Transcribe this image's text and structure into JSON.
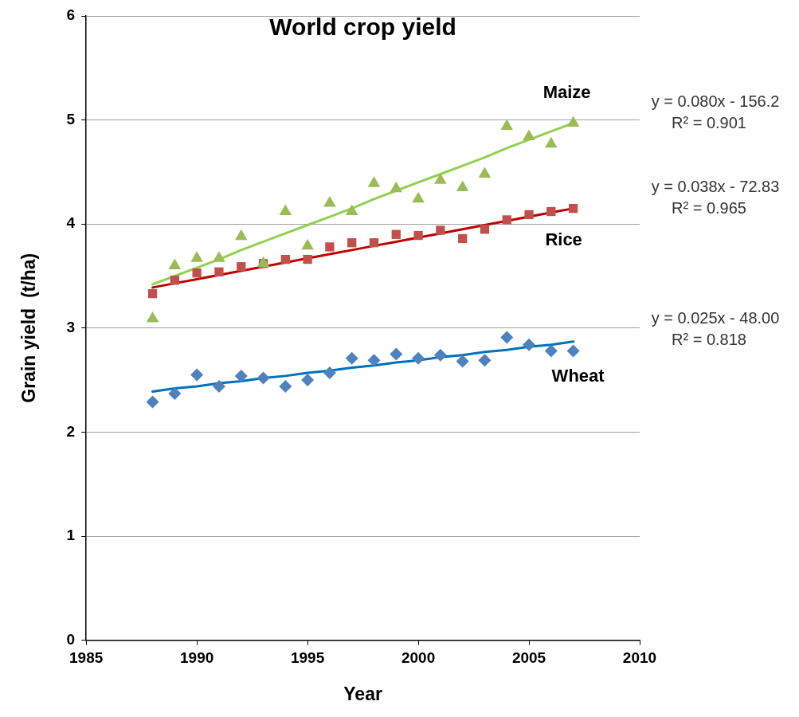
{
  "chart_data": {
    "type": "scatter",
    "title": "World crop yield",
    "xlabel": "Year",
    "ylabel": "Grain yield  (t/ha)",
    "x": [
      1988,
      1989,
      1990,
      1991,
      1992,
      1993,
      1994,
      1995,
      1996,
      1997,
      1998,
      1999,
      2000,
      2001,
      2002,
      2003,
      2004,
      2005,
      2006,
      2007
    ],
    "series": [
      {
        "name": "Maize",
        "color": "#9bbb59",
        "marker": "triangle",
        "values": [
          3.09,
          3.6,
          3.67,
          3.67,
          3.88,
          3.62,
          4.12,
          3.79,
          4.2,
          4.12,
          4.39,
          4.34,
          4.24,
          4.42,
          4.35,
          4.48,
          4.94,
          4.84,
          4.77,
          4.97
        ]
      },
      {
        "type": "line",
        "color": "#92d050",
        "marker": "none",
        "values": [
          3.42,
          3.5,
          3.58,
          3.66,
          3.75,
          3.83,
          3.91,
          3.99,
          4.07,
          4.15,
          4.24,
          4.32,
          4.4,
          4.48,
          4.56,
          4.64,
          4.73,
          4.81,
          4.89,
          4.97
        ]
      },
      {
        "name": "Rice",
        "color": "#c0504d",
        "marker": "square",
        "values": [
          3.33,
          3.46,
          3.53,
          3.54,
          3.59,
          3.62,
          3.66,
          3.66,
          3.78,
          3.82,
          3.82,
          3.9,
          3.89,
          3.94,
          3.86,
          3.95,
          4.04,
          4.09,
          4.12,
          4.15
        ]
      },
      {
        "type": "line",
        "color": "#c00000",
        "marker": "none",
        "values": [
          3.39,
          3.43,
          3.47,
          3.51,
          3.55,
          3.59,
          3.63,
          3.67,
          3.71,
          3.75,
          3.79,
          3.83,
          3.87,
          3.91,
          3.95,
          3.99,
          4.03,
          4.07,
          4.11,
          4.15
        ]
      },
      {
        "name": "Wheat",
        "color": "#4f81bd",
        "marker": "diamond",
        "values": [
          2.29,
          2.37,
          2.55,
          2.44,
          2.54,
          2.52,
          2.44,
          2.5,
          2.57,
          2.71,
          2.69,
          2.75,
          2.71,
          2.74,
          2.68,
          2.69,
          2.91,
          2.84,
          2.78,
          2.78
        ]
      },
      {
        "type": "line",
        "color": "#0070c0",
        "marker": "none",
        "values": [
          2.39,
          2.42,
          2.44,
          2.47,
          2.49,
          2.52,
          2.54,
          2.57,
          2.59,
          2.62,
          2.64,
          2.67,
          2.69,
          2.72,
          2.74,
          2.77,
          2.79,
          2.82,
          2.84,
          2.87
        ]
      }
    ],
    "annotations": [
      "y = 0.080x - 156.2\nR² = 0.901",
      "y = 0.038x - 72.83\nR² = 0.965",
      "y = 0.025x - 48.00\nR² = 0.818"
    ],
    "xlim": [
      1985,
      2010
    ],
    "xticks": [
      1985,
      1990,
      1995,
      2000,
      2005,
      2010
    ],
    "ylim": [
      0,
      6
    ],
    "yticks": [
      0,
      1,
      2,
      3,
      4,
      5,
      6
    ],
    "grid": "y",
    "legend": false
  }
}
